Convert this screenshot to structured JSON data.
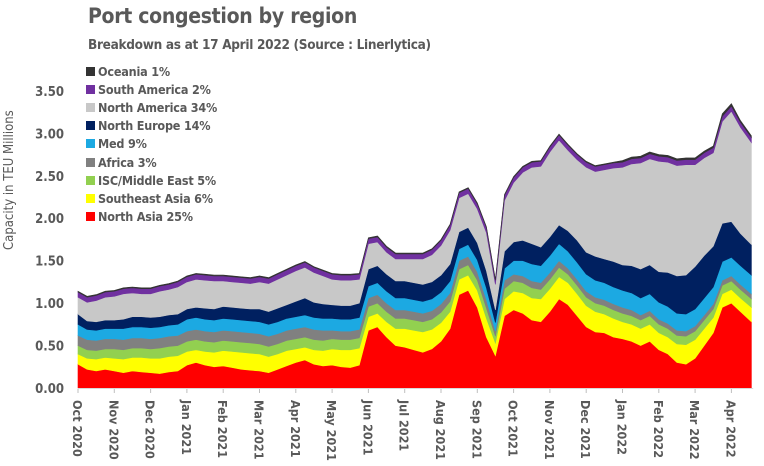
{
  "chart_data": {
    "type": "area",
    "stacked": true,
    "title": "Port congestion by region",
    "subtitle": "Breakdown as at 17 April 2022 (Source : Linerlytica)",
    "ylabel": "Capacity in TEU Millions",
    "xlabel": "",
    "ylim": [
      0,
      3.5
    ],
    "yticks": [
      "0.00",
      "0.50",
      "1.00",
      "1.50",
      "2.00",
      "2.50",
      "3.00",
      "3.50"
    ],
    "ytick_values": [
      0,
      0.5,
      1,
      1.5,
      2,
      2.5,
      3,
      3.5
    ],
    "xticks": [
      "Oct 2020",
      "Nov 2020",
      "Dec 2020",
      "Jan 2021",
      "Feb 2021",
      "Mar 2021",
      "Apr 2021",
      "May 2021",
      "Jun 2021",
      "Jul 2021",
      "Aug 2021",
      "Sep 2021",
      "Oct 2021",
      "Nov 2021",
      "Dec 2021",
      "Jan 2022",
      "Feb 2022",
      "Mar 2022",
      "Apr 2022"
    ],
    "x_range_months": [
      0,
      18.6
    ],
    "grid": false,
    "legend_position": "top-left",
    "x_months": [
      0,
      0.25,
      0.5,
      0.75,
      1,
      1.25,
      1.5,
      1.75,
      2,
      2.25,
      2.5,
      2.75,
      3,
      3.25,
      3.5,
      3.75,
      4,
      4.25,
      4.5,
      4.75,
      5,
      5.25,
      5.5,
      5.75,
      6,
      6.25,
      6.5,
      6.75,
      7,
      7.25,
      7.5,
      7.75,
      8,
      8.25,
      8.5,
      8.75,
      9,
      9.25,
      9.5,
      9.75,
      10,
      10.25,
      10.5,
      10.75,
      11,
      11.25,
      11.5,
      11.75,
      12,
      12.25,
      12.5,
      12.75,
      13,
      13.25,
      13.5,
      13.75,
      14,
      14.25,
      14.5,
      14.75,
      15,
      15.25,
      15.5,
      15.75,
      16,
      16.25,
      16.5,
      16.75,
      17,
      17.25,
      17.5,
      17.75,
      18,
      18.25,
      18.55
    ],
    "series": [
      {
        "name": "North Asia",
        "legend": "North Asia 25%",
        "color": "#FF0000",
        "values": [
          0.28,
          0.22,
          0.2,
          0.22,
          0.2,
          0.18,
          0.2,
          0.19,
          0.18,
          0.17,
          0.19,
          0.2,
          0.27,
          0.3,
          0.27,
          0.25,
          0.26,
          0.24,
          0.22,
          0.21,
          0.2,
          0.18,
          0.22,
          0.26,
          0.3,
          0.33,
          0.28,
          0.26,
          0.27,
          0.25,
          0.24,
          0.27,
          0.68,
          0.72,
          0.6,
          0.5,
          0.48,
          0.45,
          0.42,
          0.46,
          0.55,
          0.7,
          1.1,
          1.15,
          0.95,
          0.6,
          0.38,
          0.85,
          0.92,
          0.88,
          0.8,
          0.78,
          0.9,
          1.05,
          0.98,
          0.85,
          0.72,
          0.66,
          0.65,
          0.6,
          0.58,
          0.55,
          0.5,
          0.55,
          0.45,
          0.4,
          0.3,
          0.28,
          0.35,
          0.5,
          0.65,
          0.95,
          1.0,
          0.9,
          0.78
        ]
      },
      {
        "name": "Southeast Asia",
        "legend": "Southeast Asia 6%",
        "color": "#FFFF00",
        "values": [
          0.12,
          0.13,
          0.14,
          0.14,
          0.15,
          0.16,
          0.16,
          0.17,
          0.17,
          0.18,
          0.18,
          0.18,
          0.16,
          0.15,
          0.16,
          0.17,
          0.18,
          0.19,
          0.2,
          0.2,
          0.2,
          0.19,
          0.18,
          0.18,
          0.16,
          0.15,
          0.17,
          0.18,
          0.19,
          0.2,
          0.21,
          0.2,
          0.16,
          0.16,
          0.18,
          0.2,
          0.22,
          0.23,
          0.24,
          0.23,
          0.22,
          0.2,
          0.18,
          0.18,
          0.2,
          0.22,
          0.15,
          0.2,
          0.22,
          0.24,
          0.26,
          0.27,
          0.27,
          0.26,
          0.26,
          0.26,
          0.25,
          0.24,
          0.22,
          0.22,
          0.2,
          0.2,
          0.2,
          0.2,
          0.2,
          0.2,
          0.22,
          0.23,
          0.22,
          0.2,
          0.18,
          0.16,
          0.16,
          0.16,
          0.17
        ]
      },
      {
        "name": "ISC/Middle East",
        "legend": "ISC/Middle East 5%",
        "color": "#92D050",
        "values": [
          0.1,
          0.1,
          0.1,
          0.1,
          0.11,
          0.11,
          0.11,
          0.11,
          0.11,
          0.12,
          0.12,
          0.12,
          0.12,
          0.12,
          0.12,
          0.12,
          0.12,
          0.12,
          0.12,
          0.12,
          0.12,
          0.12,
          0.12,
          0.12,
          0.12,
          0.12,
          0.12,
          0.12,
          0.12,
          0.12,
          0.12,
          0.12,
          0.12,
          0.12,
          0.12,
          0.12,
          0.12,
          0.12,
          0.12,
          0.12,
          0.12,
          0.12,
          0.12,
          0.12,
          0.12,
          0.12,
          0.08,
          0.12,
          0.12,
          0.12,
          0.12,
          0.11,
          0.11,
          0.11,
          0.1,
          0.1,
          0.1,
          0.1,
          0.1,
          0.1,
          0.1,
          0.1,
          0.1,
          0.1,
          0.1,
          0.1,
          0.1,
          0.1,
          0.1,
          0.1,
          0.1,
          0.1,
          0.1,
          0.1,
          0.1
        ]
      },
      {
        "name": "Africa",
        "legend": "Africa 3%",
        "color": "#808080",
        "values": [
          0.12,
          0.12,
          0.12,
          0.12,
          0.12,
          0.12,
          0.12,
          0.12,
          0.12,
          0.12,
          0.12,
          0.12,
          0.12,
          0.12,
          0.12,
          0.12,
          0.12,
          0.12,
          0.12,
          0.12,
          0.12,
          0.12,
          0.12,
          0.12,
          0.12,
          0.12,
          0.12,
          0.12,
          0.1,
          0.1,
          0.1,
          0.1,
          0.1,
          0.1,
          0.1,
          0.1,
          0.1,
          0.1,
          0.1,
          0.1,
          0.1,
          0.1,
          0.1,
          0.1,
          0.1,
          0.1,
          0.06,
          0.1,
          0.08,
          0.08,
          0.08,
          0.08,
          0.08,
          0.08,
          0.07,
          0.07,
          0.07,
          0.07,
          0.07,
          0.07,
          0.07,
          0.07,
          0.06,
          0.06,
          0.06,
          0.06,
          0.06,
          0.06,
          0.06,
          0.06,
          0.06,
          0.06,
          0.06,
          0.06,
          0.06
        ]
      },
      {
        "name": "Med",
        "legend": "Med 9%",
        "color": "#1CA9E2",
        "values": [
          0.13,
          0.12,
          0.12,
          0.12,
          0.12,
          0.13,
          0.13,
          0.13,
          0.13,
          0.13,
          0.13,
          0.13,
          0.14,
          0.14,
          0.14,
          0.14,
          0.14,
          0.14,
          0.14,
          0.14,
          0.14,
          0.14,
          0.14,
          0.14,
          0.14,
          0.14,
          0.14,
          0.14,
          0.14,
          0.14,
          0.14,
          0.14,
          0.14,
          0.14,
          0.14,
          0.14,
          0.14,
          0.14,
          0.14,
          0.14,
          0.14,
          0.14,
          0.14,
          0.14,
          0.14,
          0.14,
          0.1,
          0.14,
          0.16,
          0.18,
          0.2,
          0.2,
          0.2,
          0.2,
          0.2,
          0.2,
          0.2,
          0.2,
          0.2,
          0.2,
          0.2,
          0.2,
          0.2,
          0.2,
          0.2,
          0.2,
          0.2,
          0.2,
          0.2,
          0.2,
          0.2,
          0.22,
          0.22,
          0.22,
          0.22
        ]
      },
      {
        "name": "North Europe",
        "legend": "North Europe 14%",
        "color": "#002060",
        "values": [
          0.12,
          0.1,
          0.1,
          0.1,
          0.1,
          0.11,
          0.12,
          0.12,
          0.12,
          0.12,
          0.12,
          0.12,
          0.12,
          0.12,
          0.13,
          0.13,
          0.14,
          0.14,
          0.14,
          0.14,
          0.15,
          0.15,
          0.16,
          0.16,
          0.18,
          0.2,
          0.18,
          0.17,
          0.16,
          0.16,
          0.16,
          0.17,
          0.2,
          0.2,
          0.2,
          0.2,
          0.2,
          0.2,
          0.2,
          0.2,
          0.2,
          0.2,
          0.2,
          0.2,
          0.2,
          0.2,
          0.15,
          0.2,
          0.22,
          0.24,
          0.24,
          0.22,
          0.22,
          0.22,
          0.24,
          0.26,
          0.26,
          0.28,
          0.28,
          0.3,
          0.3,
          0.32,
          0.34,
          0.34,
          0.36,
          0.4,
          0.44,
          0.46,
          0.5,
          0.5,
          0.48,
          0.45,
          0.42,
          0.38,
          0.36
        ]
      },
      {
        "name": "North America",
        "legend": "North America 34%",
        "color": "#C8C8C8",
        "values": [
          0.2,
          0.22,
          0.25,
          0.27,
          0.28,
          0.3,
          0.28,
          0.27,
          0.28,
          0.3,
          0.3,
          0.32,
          0.32,
          0.33,
          0.33,
          0.33,
          0.3,
          0.3,
          0.3,
          0.3,
          0.32,
          0.33,
          0.34,
          0.35,
          0.36,
          0.36,
          0.35,
          0.33,
          0.3,
          0.3,
          0.3,
          0.28,
          0.3,
          0.28,
          0.26,
          0.26,
          0.26,
          0.28,
          0.3,
          0.32,
          0.35,
          0.4,
          0.4,
          0.4,
          0.4,
          0.45,
          0.3,
          0.6,
          0.7,
          0.8,
          0.9,
          0.95,
          1.0,
          1.0,
          0.95,
          0.95,
          1.0,
          1.0,
          1.05,
          1.1,
          1.15,
          1.2,
          1.25,
          1.25,
          1.3,
          1.3,
          1.3,
          1.3,
          1.2,
          1.15,
          1.1,
          1.2,
          1.3,
          1.25,
          1.2
        ]
      },
      {
        "name": "South America",
        "legend": "South America 2%",
        "color": "#7030A0",
        "values": [
          0.06,
          0.06,
          0.06,
          0.06,
          0.06,
          0.06,
          0.06,
          0.06,
          0.06,
          0.06,
          0.06,
          0.06,
          0.06,
          0.06,
          0.06,
          0.06,
          0.06,
          0.06,
          0.06,
          0.06,
          0.06,
          0.06,
          0.06,
          0.06,
          0.06,
          0.06,
          0.06,
          0.06,
          0.06,
          0.06,
          0.06,
          0.06,
          0.06,
          0.06,
          0.06,
          0.06,
          0.06,
          0.06,
          0.06,
          0.06,
          0.06,
          0.06,
          0.06,
          0.06,
          0.06,
          0.06,
          0.05,
          0.06,
          0.06,
          0.06,
          0.06,
          0.06,
          0.06,
          0.06,
          0.06,
          0.06,
          0.06,
          0.06,
          0.06,
          0.06,
          0.06,
          0.06,
          0.06,
          0.06,
          0.06,
          0.06,
          0.06,
          0.06,
          0.06,
          0.06,
          0.06,
          0.06,
          0.06,
          0.06,
          0.06
        ]
      },
      {
        "name": "Oceania",
        "legend": "Oceania 1%",
        "color": "#333333",
        "values": [
          0.01,
          0.01,
          0.01,
          0.01,
          0.01,
          0.01,
          0.01,
          0.01,
          0.01,
          0.01,
          0.01,
          0.01,
          0.01,
          0.01,
          0.01,
          0.01,
          0.01,
          0.01,
          0.01,
          0.01,
          0.01,
          0.01,
          0.01,
          0.01,
          0.01,
          0.01,
          0.01,
          0.01,
          0.01,
          0.01,
          0.01,
          0.01,
          0.01,
          0.01,
          0.01,
          0.01,
          0.01,
          0.01,
          0.01,
          0.01,
          0.01,
          0.01,
          0.01,
          0.01,
          0.01,
          0.01,
          0.01,
          0.01,
          0.01,
          0.01,
          0.01,
          0.01,
          0.01,
          0.01,
          0.01,
          0.01,
          0.01,
          0.01,
          0.01,
          0.01,
          0.02,
          0.02,
          0.02,
          0.02,
          0.02,
          0.02,
          0.02,
          0.02,
          0.02,
          0.02,
          0.02,
          0.03,
          0.03,
          0.02,
          0.02
        ]
      }
    ]
  }
}
